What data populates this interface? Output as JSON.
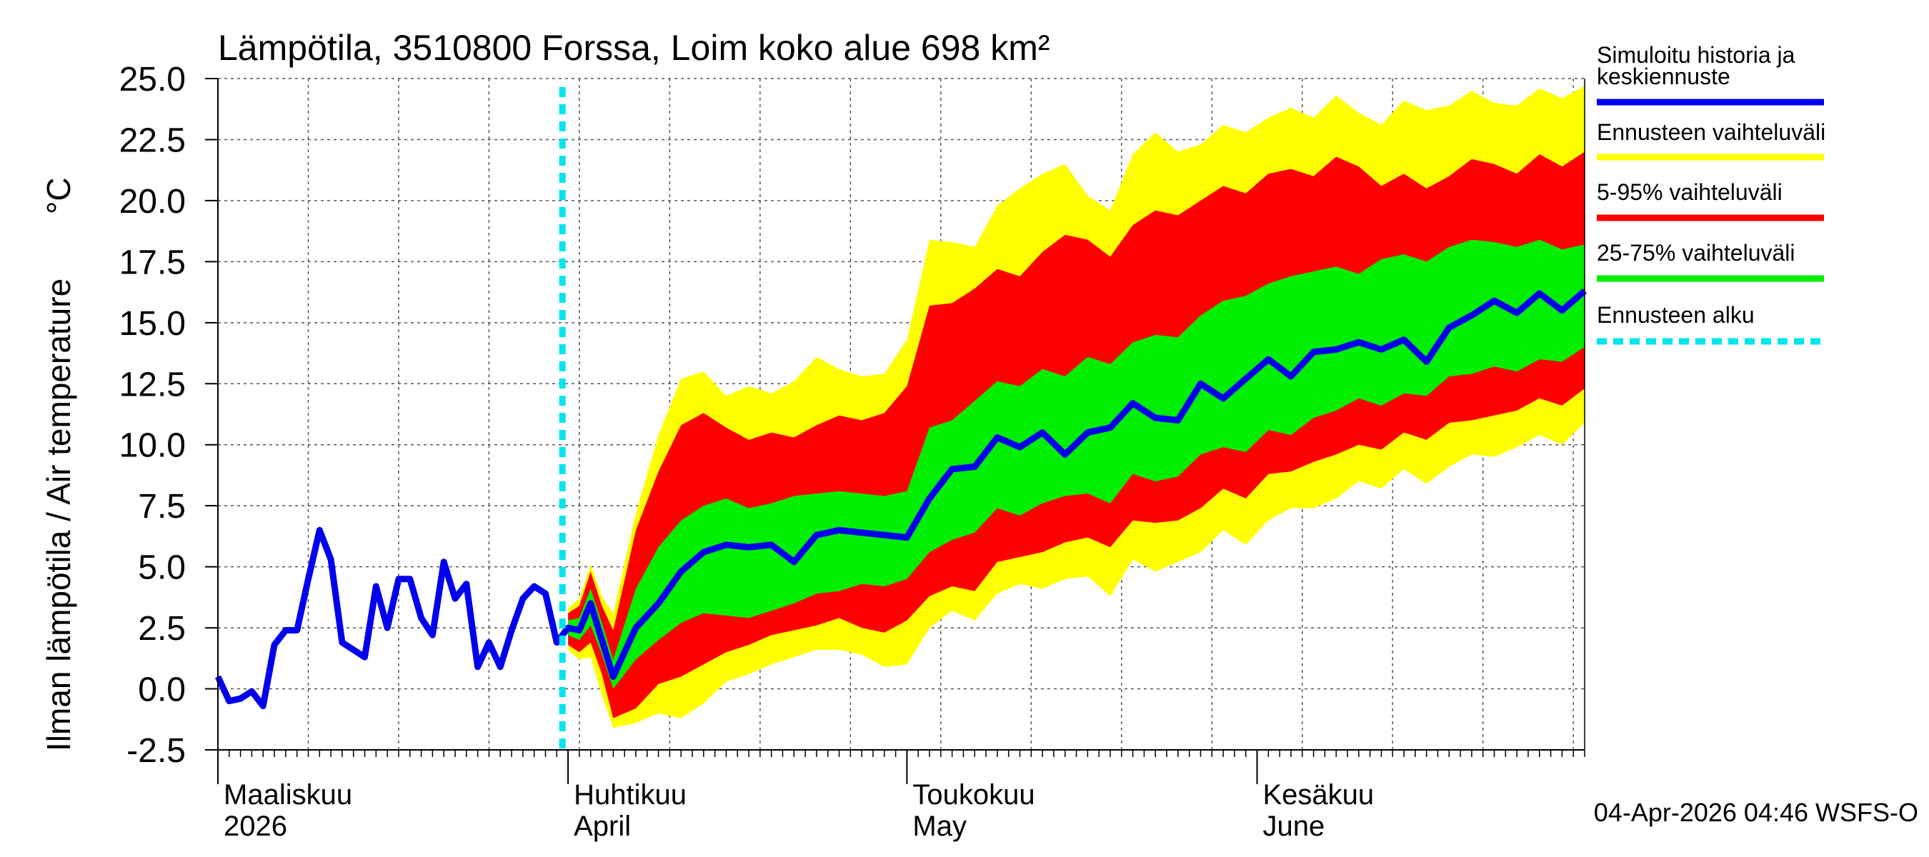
{
  "chart_data": {
    "type": "area",
    "title": "Lämpötila, 3510800 Forssa, Loim koko alue 698 km²",
    "ylabel": "Ilman lämpötila / Air temperature",
    "yunit": "°C",
    "ylim": [
      -2.5,
      25.0
    ],
    "yticks": [
      "25.0",
      "22.5",
      "20.0",
      "17.5",
      "15.0",
      "12.5",
      "10.0",
      "7.5",
      "5.0",
      "2.5",
      "0.0",
      "-2.5"
    ],
    "x_range_days": [
      0,
      121
    ],
    "month_labels": [
      {
        "line1": "Maaliskuu",
        "line2": "2026",
        "day": 0
      },
      {
        "line1": "Huhtikuu",
        "line2": "April",
        "day": 31
      },
      {
        "line1": "Toukokuu",
        "line2": "May",
        "day": 61
      },
      {
        "line1": "Kesäkuu",
        "line2": "June",
        "day": 92
      }
    ],
    "forecast_start_day": 30.5,
    "legend": [
      {
        "label": "Simuloitu historia ja",
        "label2": "keskiennuste",
        "color": "#0000ee",
        "dashed": false
      },
      {
        "label": "Ennusteen vaihteluväli",
        "color": "#ffff00",
        "dashed": false
      },
      {
        "label": "5-95% vaihteluväli",
        "color": "#ff0000",
        "dashed": false
      },
      {
        "label": "25-75% vaihteluväli",
        "color": "#00ee00",
        "dashed": false
      },
      {
        "label": "Ennusteen alku",
        "color": "#00e5ee",
        "dashed": true
      }
    ],
    "history": {
      "day": [
        0,
        1,
        2,
        3,
        4,
        5,
        6,
        7,
        8,
        9,
        10,
        11,
        12,
        13,
        14,
        15,
        16,
        17,
        18,
        19,
        20,
        21,
        22,
        23,
        24,
        25,
        26,
        27,
        28,
        29,
        30
      ],
      "value": [
        0.5,
        -0.5,
        -0.4,
        -0.1,
        -0.7,
        1.8,
        2.4,
        2.4,
        4.5,
        6.5,
        5.3,
        1.9,
        1.6,
        1.3,
        4.2,
        2.5,
        4.5,
        4.5,
        2.9,
        2.2,
        5.2,
        3.7,
        4.3,
        0.9,
        1.9,
        0.9,
        2.4,
        3.7,
        4.2,
        3.9,
        1.9
      ]
    },
    "forecast": {
      "day": [
        31,
        32,
        33,
        34,
        35,
        37,
        39,
        41,
        43,
        45,
        47,
        49,
        51,
        53,
        55,
        57,
        59,
        61,
        63,
        65,
        67,
        69,
        71,
        73,
        75,
        77,
        79,
        81,
        83,
        85,
        87,
        89,
        91,
        93,
        95,
        97,
        99,
        101,
        103,
        105,
        107,
        109,
        111,
        113,
        115,
        117,
        119,
        121
      ],
      "median": [
        2.5,
        2.4,
        3.5,
        2.0,
        0.5,
        2.5,
        3.5,
        4.8,
        5.6,
        5.9,
        5.8,
        5.9,
        5.2,
        6.3,
        6.5,
        6.4,
        6.3,
        6.2,
        7.8,
        9.0,
        9.1,
        10.3,
        9.9,
        10.5,
        9.6,
        10.5,
        10.7,
        11.7,
        11.1,
        11.0,
        12.5,
        11.9,
        12.7,
        13.5,
        12.8,
        13.8,
        13.9,
        14.2,
        13.9,
        14.3,
        13.4,
        14.8,
        15.3,
        15.9,
        15.4,
        16.2,
        15.5,
        16.3
      ],
      "p25": [
        2.2,
        2.0,
        2.6,
        1.4,
        0.0,
        1.2,
        2.0,
        2.7,
        3.1,
        3.0,
        2.9,
        3.2,
        3.5,
        3.9,
        4.0,
        4.3,
        4.2,
        4.5,
        5.6,
        6.1,
        6.4,
        7.4,
        7.1,
        7.6,
        7.9,
        8.0,
        7.6,
        8.8,
        8.5,
        8.7,
        9.6,
        9.9,
        9.7,
        10.6,
        10.4,
        11.1,
        11.4,
        11.9,
        11.6,
        12.1,
        12.0,
        12.8,
        12.9,
        13.2,
        13.0,
        13.5,
        13.4,
        14.0
      ],
      "p75": [
        2.8,
        2.9,
        4.1,
        2.7,
        1.2,
        4.1,
        5.8,
        6.9,
        7.5,
        7.8,
        7.4,
        7.6,
        7.9,
        8.0,
        8.1,
        8.0,
        7.9,
        8.1,
        10.7,
        11.0,
        11.8,
        12.6,
        12.4,
        13.1,
        12.8,
        13.6,
        13.3,
        14.2,
        14.5,
        14.4,
        15.3,
        15.9,
        16.1,
        16.6,
        16.9,
        17.1,
        17.3,
        17.0,
        17.6,
        17.8,
        17.5,
        18.1,
        18.4,
        18.3,
        18.1,
        18.4,
        18.0,
        18.2
      ],
      "p05": [
        1.8,
        1.5,
        1.9,
        0.6,
        -1.2,
        -0.8,
        0.2,
        0.5,
        1.0,
        1.5,
        1.8,
        2.2,
        2.4,
        2.6,
        2.9,
        2.5,
        2.3,
        2.8,
        3.8,
        4.2,
        4.0,
        5.2,
        5.4,
        5.6,
        6.0,
        6.2,
        5.8,
        6.9,
        6.8,
        6.9,
        7.4,
        8.2,
        7.8,
        8.8,
        8.9,
        9.3,
        9.6,
        10.0,
        9.8,
        10.5,
        10.2,
        10.9,
        11.0,
        11.2,
        11.4,
        11.9,
        11.6,
        12.3
      ],
      "p95": [
        3.1,
        3.4,
        4.8,
        3.4,
        2.4,
        6.5,
        8.9,
        10.8,
        11.3,
        10.7,
        10.2,
        10.5,
        10.3,
        10.8,
        11.2,
        11.0,
        11.3,
        12.4,
        15.7,
        15.8,
        16.4,
        17.2,
        16.9,
        17.9,
        18.6,
        18.4,
        17.7,
        19.0,
        19.6,
        19.4,
        20.0,
        20.6,
        20.3,
        21.1,
        21.3,
        21.0,
        21.8,
        21.4,
        20.6,
        21.1,
        20.5,
        21.0,
        21.7,
        21.5,
        21.1,
        21.9,
        21.4,
        22.0
      ],
      "min": [
        1.6,
        1.2,
        1.3,
        -0.3,
        -1.6,
        -1.4,
        -1.0,
        -1.2,
        -0.6,
        0.3,
        0.6,
        1.0,
        1.3,
        1.6,
        1.6,
        1.4,
        0.9,
        1.0,
        2.5,
        3.2,
        2.8,
        3.9,
        4.3,
        4.1,
        4.5,
        4.6,
        3.8,
        5.3,
        4.8,
        5.2,
        5.6,
        6.5,
        5.9,
        6.9,
        7.4,
        7.4,
        7.8,
        8.5,
        8.2,
        9.0,
        8.4,
        9.1,
        9.6,
        9.5,
        9.9,
        10.4,
        10.0,
        10.9
      ],
      "max": [
        3.3,
        3.7,
        5.1,
        3.8,
        3.1,
        7.2,
        10.4,
        12.7,
        13.0,
        12.0,
        12.4,
        12.1,
        12.6,
        13.6,
        13.1,
        12.8,
        12.9,
        14.3,
        18.4,
        18.3,
        18.1,
        19.8,
        20.5,
        21.1,
        21.5,
        20.2,
        19.6,
        21.9,
        22.8,
        22.0,
        22.3,
        23.1,
        22.8,
        23.4,
        23.8,
        23.4,
        24.3,
        23.6,
        23.1,
        24.1,
        23.7,
        23.9,
        24.5,
        24.0,
        23.9,
        24.6,
        24.2,
        24.7
      ]
    },
    "footer": "04-Apr-2026 04:46 WSFS-O"
  }
}
